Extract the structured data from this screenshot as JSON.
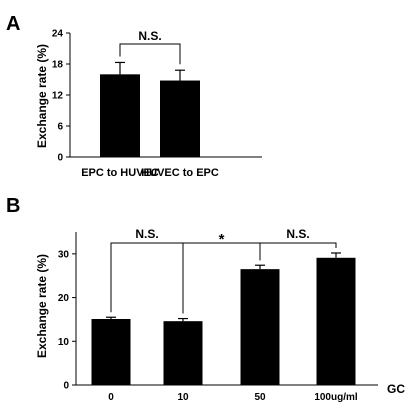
{
  "chart_data": [
    {
      "type": "bar",
      "panel": "A",
      "ylabel": "Exchange rate (%)",
      "xlabel": "",
      "ylim": [
        0,
        24
      ],
      "yticks": [
        "0",
        "6",
        "12",
        "18",
        "24"
      ],
      "categories": [
        "EPC to HUVEC",
        "HUVEC to EPC"
      ],
      "values": [
        16,
        14.8
      ],
      "errors": [
        2.3,
        2.0
      ],
      "annotations": [
        {
          "from": 0,
          "to": 1,
          "text": "N.S."
        }
      ]
    },
    {
      "type": "bar",
      "panel": "B",
      "ylabel": "Exchange rate (%)",
      "xlabel": "GC",
      "ylim": [
        0,
        35
      ],
      "yticks": [
        "0",
        "10",
        "20",
        "30"
      ],
      "categories": [
        "0",
        "10",
        "50",
        "100ug/ml"
      ],
      "values": [
        15.1,
        14.6,
        26.5,
        29.1
      ],
      "errors": [
        0.4,
        0.6,
        0.9,
        1.1
      ],
      "annotations": [
        {
          "from": 0,
          "to": 1,
          "text": "N.S."
        },
        {
          "from": 1,
          "to": 2,
          "text": "*"
        },
        {
          "from": 2,
          "to": 3,
          "text": "N.S."
        }
      ]
    }
  ]
}
